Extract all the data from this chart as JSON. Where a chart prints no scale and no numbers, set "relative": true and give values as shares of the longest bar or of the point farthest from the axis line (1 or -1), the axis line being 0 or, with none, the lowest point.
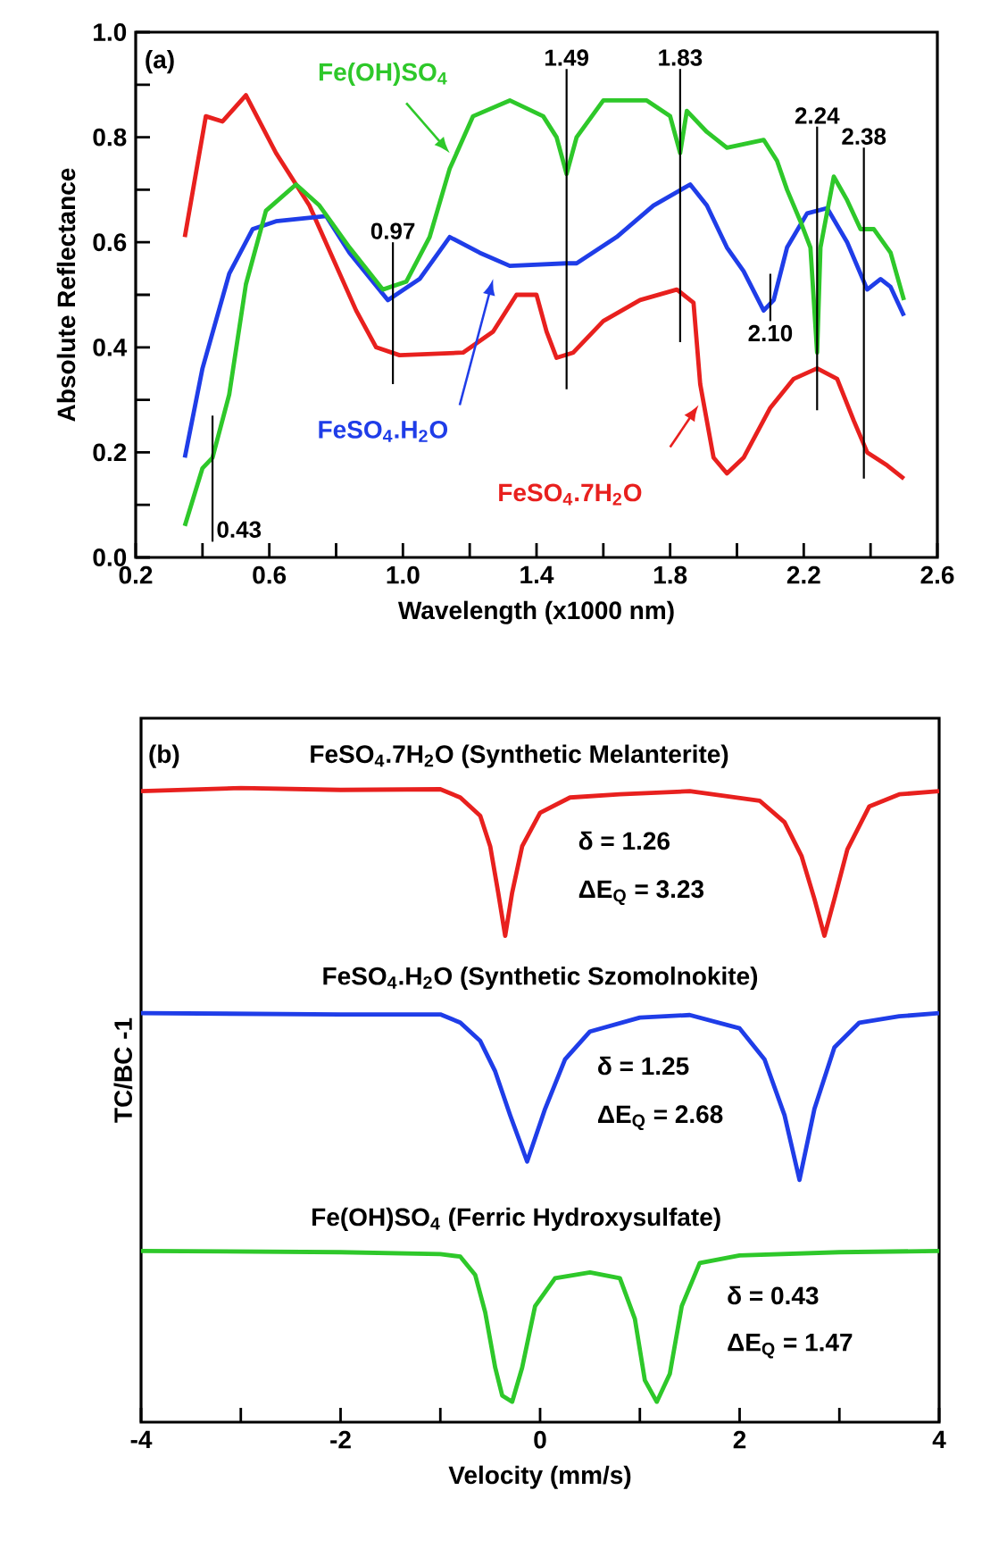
{
  "chart_data": [
    {
      "type": "line",
      "annotations": [
        "(a)"
      ],
      "xlabel": "Wavelength (x1000 nm)",
      "ylabel": "Absolute Reflectance",
      "xlim": [
        0.2,
        2.6
      ],
      "ylim": [
        0,
        1.0
      ],
      "xticks": [
        0.2,
        {
          "value": 0.4,
          "label": null
        },
        0.6,
        {
          "value": 0.8,
          "label": null
        },
        {
          "value": 1.0,
          "label": "1.0"
        },
        {
          "value": 1.2,
          "label": null
        },
        1.4,
        {
          "value": 1.6,
          "label": null
        },
        1.8,
        {
          "value": 2.0,
          "label": null
        },
        2.2,
        {
          "value": 2.4,
          "label": null
        },
        2.6
      ],
      "yticks": [
        {
          "value": 0,
          "label": "0.0"
        },
        {
          "value": 0.1,
          "label": null
        },
        0.2,
        {
          "value": 0.3,
          "label": null
        },
        0.4,
        {
          "value": 0.5,
          "label": null
        },
        0.6,
        {
          "value": 0.7,
          "label": null
        },
        0.8,
        {
          "value": 0.9,
          "label": null
        },
        {
          "value": 1.0,
          "label": "1.0"
        }
      ],
      "legend": false,
      "marker": "none",
      "line_style": "solid",
      "ref_lines": [
        {
          "axis": "x",
          "value": 0.43,
          "label": "0.43",
          "color": "#000000"
        },
        {
          "axis": "x",
          "value": 0.97,
          "label": "0.97",
          "color": "#000000"
        },
        {
          "axis": "x",
          "value": 1.49,
          "label": "1.49",
          "color": "#000000"
        },
        {
          "axis": "x",
          "value": 1.83,
          "label": "1.83",
          "color": "#000000"
        },
        {
          "axis": "x",
          "value": 2.1,
          "label": "2.10",
          "color": "#000000"
        },
        {
          "axis": "x",
          "value": 2.24,
          "label": "2.24",
          "color": "#000000"
        },
        {
          "axis": "x",
          "value": 2.38,
          "label": "2.38",
          "color": "#000000"
        }
      ],
      "series": [
        {
          "name": "FeSO$_{4}$.7H$_{2}$O",
          "color": "#e8201e",
          "x": [
            0.347,
            0.41,
            0.46,
            0.53,
            0.62,
            0.72,
            0.79,
            0.86,
            0.92,
            0.99,
            1.18,
            1.27,
            1.34,
            1.4,
            1.43,
            1.46,
            1.51,
            1.6,
            1.71,
            1.82,
            1.87,
            1.89,
            1.93,
            1.97,
            2.02,
            2.1,
            2.17,
            2.24,
            2.3,
            2.35,
            2.39,
            2.45,
            2.5
          ],
          "values": [
            0.61,
            0.84,
            0.83,
            0.88,
            0.77,
            0.67,
            0.57,
            0.47,
            0.4,
            0.385,
            0.39,
            0.43,
            0.5,
            0.5,
            0.43,
            0.38,
            0.39,
            0.45,
            0.49,
            0.51,
            0.485,
            0.33,
            0.19,
            0.16,
            0.19,
            0.285,
            0.34,
            0.36,
            0.34,
            0.26,
            0.2,
            0.175,
            0.15
          ]
        },
        {
          "name": "FeSO$_{4}$.H$_{2}$O",
          "color": "#1f3de8",
          "x": [
            0.347,
            0.4,
            0.48,
            0.55,
            0.62,
            0.77,
            0.84,
            0.955,
            1.05,
            1.14,
            1.23,
            1.32,
            1.49,
            1.52,
            1.64,
            1.75,
            1.86,
            1.91,
            1.97,
            2.02,
            2.08,
            2.11,
            2.15,
            2.21,
            2.27,
            2.33,
            2.39,
            2.43,
            2.46,
            2.5
          ],
          "values": [
            0.19,
            0.36,
            0.54,
            0.625,
            0.64,
            0.65,
            0.58,
            0.49,
            0.53,
            0.61,
            0.58,
            0.555,
            0.56,
            0.56,
            0.61,
            0.67,
            0.71,
            0.67,
            0.59,
            0.545,
            0.47,
            0.49,
            0.59,
            0.655,
            0.665,
            0.6,
            0.51,
            0.53,
            0.515,
            0.46
          ]
        },
        {
          "name": "Fe(OH)SO$_{4}$",
          "color": "#2ec82a",
          "x": [
            0.347,
            0.4,
            0.43,
            0.48,
            0.53,
            0.59,
            0.68,
            0.75,
            0.84,
            0.94,
            1.01,
            1.08,
            1.14,
            1.21,
            1.32,
            1.42,
            1.46,
            1.49,
            1.52,
            1.6,
            1.73,
            1.8,
            1.83,
            1.85,
            1.91,
            1.97,
            2.08,
            2.12,
            2.15,
            2.19,
            2.22,
            2.24,
            2.25,
            2.29,
            2.33,
            2.37,
            2.41,
            2.46,
            2.5
          ],
          "values": [
            0.06,
            0.17,
            0.19,
            0.31,
            0.52,
            0.66,
            0.71,
            0.67,
            0.59,
            0.51,
            0.525,
            0.61,
            0.74,
            0.84,
            0.87,
            0.84,
            0.8,
            0.73,
            0.8,
            0.87,
            0.87,
            0.84,
            0.77,
            0.85,
            0.81,
            0.78,
            0.795,
            0.755,
            0.7,
            0.64,
            0.59,
            0.39,
            0.59,
            0.725,
            0.68,
            0.625,
            0.625,
            0.58,
            0.49
          ]
        }
      ]
    },
    {
      "type": "line",
      "relative": true,
      "annotations": [
        "(b)",
        "δ = 1.26",
        "ΔE$_{Q}$ = 3.23",
        "δ = 1.25",
        "ΔE$_{Q}$ = 2.68",
        "δ = 0.43",
        "ΔE$_{Q}$ = 1.47"
      ],
      "xlabel": "Velocity (mm/s)",
      "ylabel": "TC/BC -1",
      "xlim": [
        -4,
        4
      ],
      "xticks": [
        -4,
        {
          "value": -3,
          "label": null
        },
        -2,
        {
          "value": -1,
          "label": null
        },
        0,
        {
          "value": 1,
          "label": null
        },
        2,
        {
          "value": 3,
          "label": null
        },
        4
      ],
      "legend": false,
      "marker": "none",
      "line_style": "solid",
      "series": [
        {
          "name": "FeSO$_{4}$.7H$_{2}$O (Synthetic Melanterite)",
          "color": "#e8201e",
          "x": [
            -4,
            -3,
            -2,
            -1,
            -0.8,
            -0.6,
            -0.5,
            -0.42,
            -0.35,
            -0.28,
            -0.18,
            0,
            0.3,
            0.8,
            1.5,
            2.2,
            2.45,
            2.62,
            2.75,
            2.85,
            2.95,
            3.08,
            3.3,
            3.6,
            4
          ],
          "values": [
            0.995,
            1.0,
            0.997,
            0.998,
            0.985,
            0.956,
            0.908,
            0.835,
            0.767,
            0.835,
            0.908,
            0.961,
            0.985,
            0.99,
            0.995,
            0.98,
            0.946,
            0.893,
            0.825,
            0.767,
            0.825,
            0.903,
            0.971,
            0.99,
            0.995
          ]
        },
        {
          "name": "FeSO$_{4}$.H$_{2}$O (Synthetic Szomolnokite)",
          "color": "#1f3de8",
          "x": [
            -4,
            -2,
            -1,
            -0.8,
            -0.6,
            -0.45,
            -0.3,
            -0.13,
            0.05,
            0.25,
            0.5,
            1.0,
            1.5,
            2.0,
            2.25,
            2.45,
            2.6,
            2.75,
            2.95,
            3.2,
            3.6,
            4
          ],
          "values": [
            0.645,
            0.643,
            0.643,
            0.63,
            0.601,
            0.553,
            0.484,
            0.411,
            0.494,
            0.572,
            0.616,
            0.638,
            0.642,
            0.621,
            0.572,
            0.484,
            0.382,
            0.494,
            0.591,
            0.63,
            0.64,
            0.645
          ]
        },
        {
          "name": "Fe(OH)SO$_{4}$ (Ferric Hydroxysulfate)",
          "color": "#2ec82a",
          "x": [
            -4,
            -2,
            -1,
            -0.8,
            -0.65,
            -0.55,
            -0.45,
            -0.38,
            -0.28,
            -0.18,
            -0.05,
            0.15,
            0.5,
            0.8,
            0.95,
            1.05,
            1.17,
            1.3,
            1.42,
            1.6,
            2.0,
            3,
            4
          ],
          "values": [
            0.27,
            0.268,
            0.265,
            0.261,
            0.232,
            0.173,
            0.086,
            0.042,
            0.032,
            0.086,
            0.183,
            0.227,
            0.236,
            0.227,
            0.163,
            0.066,
            0.032,
            0.076,
            0.183,
            0.251,
            0.263,
            0.268,
            0.27
          ]
        }
      ]
    }
  ]
}
